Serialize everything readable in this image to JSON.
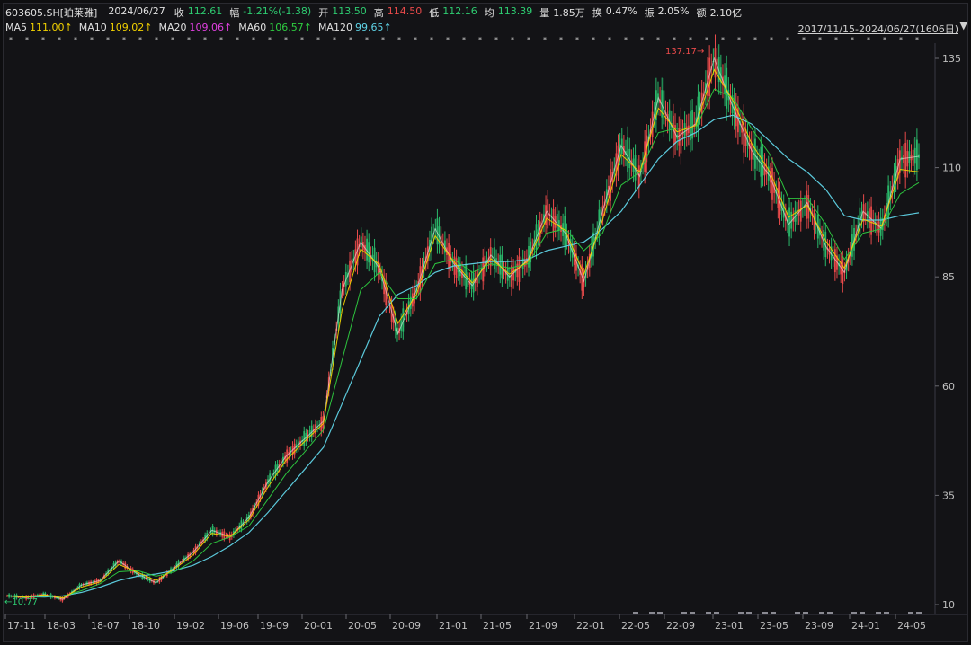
{
  "header": {
    "code": "603605.SH[珀莱雅]",
    "date": "2024/06/27",
    "close_label": "收",
    "close": "112.61",
    "change_label": "幅",
    "change": "-1.21%(-1.38)",
    "open_label": "开",
    "open": "113.50",
    "high_label": "高",
    "high": "114.50",
    "low_label": "低",
    "low": "112.16",
    "avg_label": "均",
    "avg": "113.39",
    "vol_label": "量",
    "vol": "1.85万",
    "turnover_label": "换",
    "turnover": "0.47%",
    "amplitude_label": "振",
    "amplitude": "2.05%",
    "amount_label": "额",
    "amount": "2.10亿"
  },
  "ma": {
    "ma5_label": "MA5",
    "ma5": "111.00↑",
    "ma10_label": "MA10",
    "ma10": "109.02↑",
    "ma20_label": "MA20",
    "ma20": "109.06↑",
    "ma60_label": "MA60",
    "ma60": "106.57↑",
    "ma120_label": "MA120",
    "ma120": "99.65↑"
  },
  "date_range": "2017/11/15-2024/06/27(1606日)",
  "colors": {
    "up": "#e84a4a",
    "down": "#2ecc71",
    "ma5": "#f5f5f5",
    "ma10": "#f0d000",
    "ma20": "#e040e0",
    "ma60": "#2ecc40",
    "ma120": "#5fd3e6",
    "grid": "#3a3a44"
  },
  "chart_data": {
    "type": "line",
    "title": "",
    "ylim": [
      0,
      140
    ],
    "y_ticks": [
      "135",
      "110",
      "85",
      "60",
      "35",
      "10"
    ],
    "y_tick_values": [
      135,
      110,
      85,
      60,
      35,
      10
    ],
    "x_ticks": [
      "17-11",
      "18-03",
      "18-07",
      "18-10",
      "19-02",
      "19-06",
      "19-09",
      "20-01",
      "20-05",
      "20-09",
      "21-01",
      "21-05",
      "21-09",
      "22-01",
      "22-05",
      "22-09",
      "23-01",
      "23-05",
      "23-09",
      "24-01",
      "24-05"
    ],
    "annotations": {
      "max_label": "137.17→",
      "max_value": 137.17,
      "min_label": "←10.77",
      "min_value": 10.77
    },
    "series": [
      {
        "name": "close",
        "values": [
          12.0,
          11.6,
          12.3,
          11.2,
          14.5,
          15.5,
          20.0,
          17.0,
          15.0,
          18.5,
          22.0,
          27.0,
          25.5,
          30.0,
          38.0,
          44.0,
          48.0,
          52.0,
          82.0,
          93.0,
          87.0,
          72.0,
          82.0,
          96.0,
          88.0,
          83.0,
          90.0,
          85.0,
          89.0,
          100.0,
          95.0,
          84.0,
          100.0,
          115.0,
          108.0,
          126.0,
          117.0,
          120.0,
          135.0,
          124.0,
          114.0,
          108.0,
          97.0,
          102.0,
          92.0,
          86.0,
          100.0,
          96.0,
          112.0,
          112.6
        ]
      },
      {
        "name": "MA120",
        "values": [
          12.0,
          11.8,
          11.7,
          12.0,
          12.8,
          14.0,
          15.5,
          16.5,
          17.0,
          17.8,
          19.0,
          21.0,
          23.5,
          26.5,
          31.0,
          36.0,
          41.0,
          46.0,
          56.0,
          66.0,
          76.0,
          81.0,
          83.0,
          86.0,
          87.5,
          88.0,
          88.5,
          88.5,
          89.0,
          91.0,
          92.0,
          93.0,
          96.0,
          100.0,
          106.0,
          112.0,
          116.0,
          118.0,
          121.0,
          122.0,
          120.0,
          116.0,
          112.0,
          109.0,
          105.0,
          99.0,
          98.0,
          98.0,
          99.0,
          99.65
        ]
      },
      {
        "name": "MA60",
        "values": [
          12.0,
          11.8,
          11.9,
          11.9,
          13.2,
          14.8,
          17.5,
          17.8,
          16.5,
          17.5,
          20.0,
          24.0,
          25.5,
          28.0,
          34.0,
          40.0,
          45.0,
          50.0,
          66.0,
          82.0,
          86.0,
          80.0,
          80.0,
          88.0,
          89.0,
          86.0,
          88.0,
          87.0,
          88.0,
          95.0,
          96.0,
          91.0,
          95.0,
          106.0,
          109.0,
          118.0,
          119.0,
          119.0,
          128.0,
          126.0,
          119.0,
          113.0,
          103.0,
          103.0,
          97.0,
          89.0,
          95.0,
          96.0,
          104.0,
          106.57
        ]
      },
      {
        "name": "MA10",
        "values": [
          12.0,
          11.7,
          12.2,
          11.5,
          14.0,
          15.2,
          19.2,
          17.4,
          15.5,
          18.2,
          21.4,
          26.3,
          25.6,
          29.4,
          36.8,
          43.1,
          47.4,
          51.5,
          77.5,
          91.4,
          87.8,
          74.4,
          81.0,
          94.4,
          88.5,
          83.6,
          89.2,
          85.6,
          88.6,
          98.4,
          95.6,
          85.6,
          98.0,
          113.0,
          109.0,
          123.6,
          118.2,
          119.6,
          132.4,
          125.4,
          115.6,
          109.0,
          98.6,
          101.4,
          93.2,
          87.0,
          98.2,
          96.6,
          109.6,
          109.02
        ]
      }
    ]
  }
}
